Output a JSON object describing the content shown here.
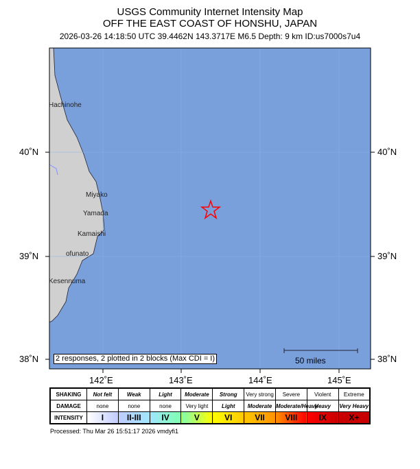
{
  "header": {
    "title": "USGS Community Internet Intensity Map",
    "region": "OFF THE EAST COAST OF HONSHU, JAPAN",
    "details": "2026-03-26 14:18:50 UTC 39.4462N 143.3717E M6.5 Depth: 9 km ID:us7000s7u4"
  },
  "map": {
    "lat_labels": [
      "40˚N",
      "39˚N",
      "38˚N"
    ],
    "lon_labels": [
      "142˚E",
      "143˚E",
      "144˚E",
      "145˚E"
    ],
    "cities": [
      "Hachinohe",
      "Miyako",
      "Yamada",
      "Kamaishi",
      "ofunato",
      "Kesennuma"
    ],
    "epicenter": {
      "lat": 39.4462,
      "lon": 143.3717,
      "icon": "star-icon",
      "color": "#ff0000"
    },
    "ocean_color": "#7aa0dc",
    "land_color": "#d0d0d0",
    "note": "2 responses, 2 plotted in 2 blocks (Max CDI = I)",
    "scale_label": "50 miles"
  },
  "legend": {
    "row_labels": [
      "SHAKING",
      "DAMAGE",
      "INTENSITY"
    ],
    "shaking": [
      "Not felt",
      "Weak",
      "Light",
      "Moderate",
      "Strong",
      "Very strong",
      "Severe",
      "Violent",
      "Extreme"
    ],
    "damage": [
      "none",
      "none",
      "none",
      "Very light",
      "Light",
      "Moderate",
      "Moderate/Heavy",
      "Heavy",
      "Very Heavy"
    ],
    "intensity": [
      "I",
      "II-III",
      "IV",
      "V",
      "VI",
      "VII",
      "VIII",
      "IX",
      "X+"
    ],
    "colors": [
      "#ffffff",
      "#bfccff",
      "#a0e6ff",
      "#80ffb0",
      "#ffff00",
      "#ffc800",
      "#ff9100",
      "#ff0000",
      "#c80000"
    ]
  },
  "footer": {
    "processed": "Processed: Thu Mar 26 15:51:17 2026 vmdyfi1"
  }
}
